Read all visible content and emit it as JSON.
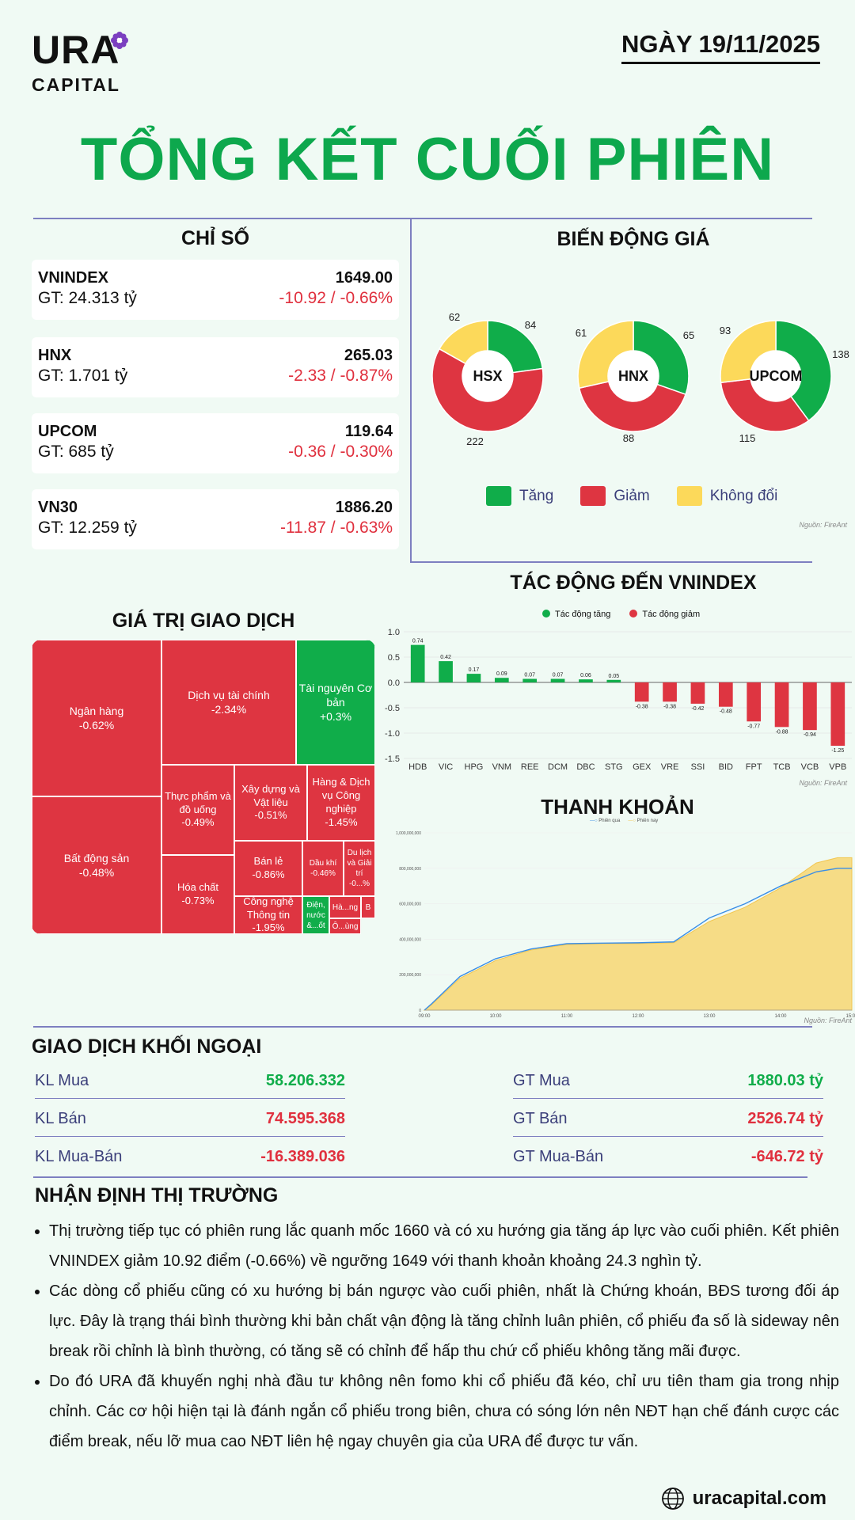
{
  "brand": {
    "name": "URA",
    "sub": "CAPITAL",
    "website": "uracapital.com"
  },
  "date": "NGÀY 19/11/2025",
  "title": "TỔNG KẾT CUỐI PHIÊN",
  "indices": {
    "title": "CHỈ SỐ",
    "items": [
      {
        "name": "VNINDEX",
        "value": "1649.00",
        "gt": "GT: 24.313 tỷ",
        "change": "-10.92 / -0.66%"
      },
      {
        "name": "HNX",
        "value": "265.03",
        "gt": "GT: 1.701 tỷ",
        "change": "-2.33 / -0.87%"
      },
      {
        "name": "UPCOM",
        "value": "119.64",
        "gt": "GT: 685 tỷ",
        "change": "-0.36 / -0.30%"
      },
      {
        "name": "VN30",
        "value": "1886.20",
        "gt": "GT: 12.259 tỷ",
        "change": "-11.87 / -0.63%"
      }
    ]
  },
  "price_moves": {
    "title": "BIẾN ĐỘNG GIÁ",
    "source": "Nguồn: FireAnt",
    "legend": [
      "Tăng",
      "Giảm",
      "Không đổi"
    ],
    "colors": {
      "up": "#10ad4a",
      "down": "#de3541",
      "flat": "#fcd95a"
    }
  },
  "trade_value": {
    "title": "GIÁ TRỊ GIAO DỊCH",
    "cells": [
      {
        "label": "Ngân hàng",
        "pct": "-0.62%"
      },
      {
        "label": "Bất động sản",
        "pct": "-0.48%"
      },
      {
        "label": "Dịch vụ tài chính",
        "pct": "-2.34%"
      },
      {
        "label": "Tài nguyên Cơ bản",
        "pct": "+0.3%"
      },
      {
        "label": "Thực phẩm và đồ uống",
        "pct": "-0.49%"
      },
      {
        "label": "Xây dựng và Vật liệu",
        "pct": "-0.51%"
      },
      {
        "label": "Hàng & Dịch vụ Công nghiệp",
        "pct": "-1.45%"
      },
      {
        "label": "Hóa chất",
        "pct": "-0.73%"
      },
      {
        "label": "Bán lẻ",
        "pct": "-0.86%"
      },
      {
        "label": "Dầu khí",
        "pct": "-0.46%"
      },
      {
        "label": "Du lịch và Giải trí",
        "pct": "-0...%"
      },
      {
        "label": "Công nghệ Thông tin",
        "pct": "-1.95%"
      },
      {
        "label": "Điện, nước &...ốt",
        "pct": ""
      },
      {
        "label": "Hà...ng",
        "pct": ""
      },
      {
        "label": "B",
        "pct": ""
      },
      {
        "label": "Ô...ùng",
        "pct": ""
      }
    ]
  },
  "impact": {
    "title": "TÁC ĐỘNG ĐẾN VNINDEX",
    "legend_up": "Tác động tăng",
    "legend_down": "Tác động giảm",
    "source": "Nguồn: FireAnt"
  },
  "liquidity": {
    "title": "THANH KHOẢN",
    "legend_prev": "Phiên qua",
    "legend_now": "Phiên nay",
    "source": "Nguồn: FireAnt"
  },
  "chart_data": [
    {
      "type": "pie",
      "title": "HSX",
      "labels": [
        "Tăng",
        "Giảm",
        "Không đổi"
      ],
      "values": [
        84,
        222,
        62
      ]
    },
    {
      "type": "pie",
      "title": "HNX",
      "labels": [
        "Tăng",
        "Giảm",
        "Không đổi"
      ],
      "values": [
        65,
        88,
        61
      ]
    },
    {
      "type": "pie",
      "title": "UPCOM",
      "labels": [
        "Tăng",
        "Giảm",
        "Không đổi"
      ],
      "values": [
        138,
        115,
        93
      ]
    },
    {
      "type": "bar",
      "title": "TÁC ĐỘNG ĐẾN VNINDEX",
      "categories": [
        "HDB",
        "VIC",
        "HPG",
        "VNM",
        "REE",
        "DCM",
        "DBC",
        "STG",
        "GEX",
        "VRE",
        "SSI",
        "BID",
        "FPT",
        "TCB",
        "VCB",
        "VPB"
      ],
      "values": [
        0.74,
        0.42,
        0.17,
        0.09,
        0.07,
        0.07,
        0.06,
        0.05,
        -0.38,
        -0.38,
        -0.42,
        -0.48,
        -0.77,
        -0.88,
        -0.94,
        -1.25
      ],
      "ylim": [
        -1.5,
        1.0
      ],
      "yticks": [
        "1.0",
        "0.5",
        "0.0",
        "-0.5",
        "-1.0",
        "-1.5"
      ]
    },
    {
      "type": "area",
      "title": "THANH KHOẢN",
      "x": [
        "09:00",
        "10:00",
        "11:00",
        "12:00",
        "13:00",
        "14:00",
        "15:00"
      ],
      "yticks": [
        "0",
        "200,000,000",
        "400,000,000",
        "600,000,000",
        "800,000,000",
        "1,000,000,000"
      ],
      "ylim": [
        0,
        1000000000
      ],
      "series": [
        {
          "name": "Phiên nay",
          "x": [
            0,
            0.1,
            0.5,
            1,
            1.5,
            2,
            2.5,
            3,
            3.5,
            4,
            4.5,
            5,
            5.5,
            5.8,
            6
          ],
          "values": [
            0,
            30000000,
            180000000,
            280000000,
            340000000,
            370000000,
            375000000,
            375000000,
            380000000,
            500000000,
            580000000,
            690000000,
            830000000,
            860000000,
            860000000
          ]
        },
        {
          "name": "Phiên qua",
          "x": [
            0,
            0.1,
            0.5,
            1,
            1.5,
            2,
            2.5,
            3,
            3.5,
            4,
            4.5,
            5,
            5.5,
            5.8,
            6
          ],
          "values": [
            0,
            35000000,
            190000000,
            290000000,
            345000000,
            375000000,
            378000000,
            380000000,
            385000000,
            520000000,
            600000000,
            700000000,
            780000000,
            800000000,
            800000000
          ]
        }
      ]
    }
  ],
  "foreign": {
    "title": "GIAO DỊCH KHỐI NGOẠI",
    "rows": [
      {
        "label": "KL Mua",
        "value": "58.206.332",
        "label2": "GT Mua",
        "value2": "1880.03 tỷ"
      },
      {
        "label": "KL Bán",
        "value": "74.595.368",
        "label2": "GT Bán",
        "value2": "2526.74 tỷ"
      },
      {
        "label": "KL Mua-Bán",
        "value": "-16.389.036",
        "label2": "GT Mua-Bán",
        "value2": "-646.72 tỷ"
      }
    ]
  },
  "outlook": {
    "title": "NHẬN ĐỊNH THỊ TRƯỜNG",
    "bullets": [
      "Thị trường tiếp tục có phiên rung lắc quanh mốc 1660 và có xu hướng gia tăng áp lực vào cuối phiên. Kết phiên VNINDEX giảm 10.92 điểm (-0.66%) về ngưỡng 1649 với thanh khoản khoảng 24.3 nghìn tỷ.",
      "Các dòng cổ phiếu cũng có xu hướng bị bán ngược vào cuối phiên, nhất là Chứng khoán, BĐS tương đối áp lực. Đây là trạng thái bình thường khi bản chất vận động là tăng chỉnh luân phiên, cổ phiếu đa số là sideway nên break rồi chỉnh là bình thường, có tăng sẽ có chỉnh để hấp thu chứ cổ phiếu không tăng mãi được.",
      "Do đó URA đã khuyến nghị nhà đầu tư không nên fomo khi cổ phiếu đã kéo, chỉ ưu tiên tham gia trong nhịp chỉnh. Các cơ hội hiện tại là đánh ngắn cổ phiếu trong biên, chưa có sóng lớn nên NĐT hạn chế đánh cược các điểm break, nếu lỡ mua cao NĐT liên hệ ngay chuyên gia của URA để được tư vấn."
    ]
  }
}
